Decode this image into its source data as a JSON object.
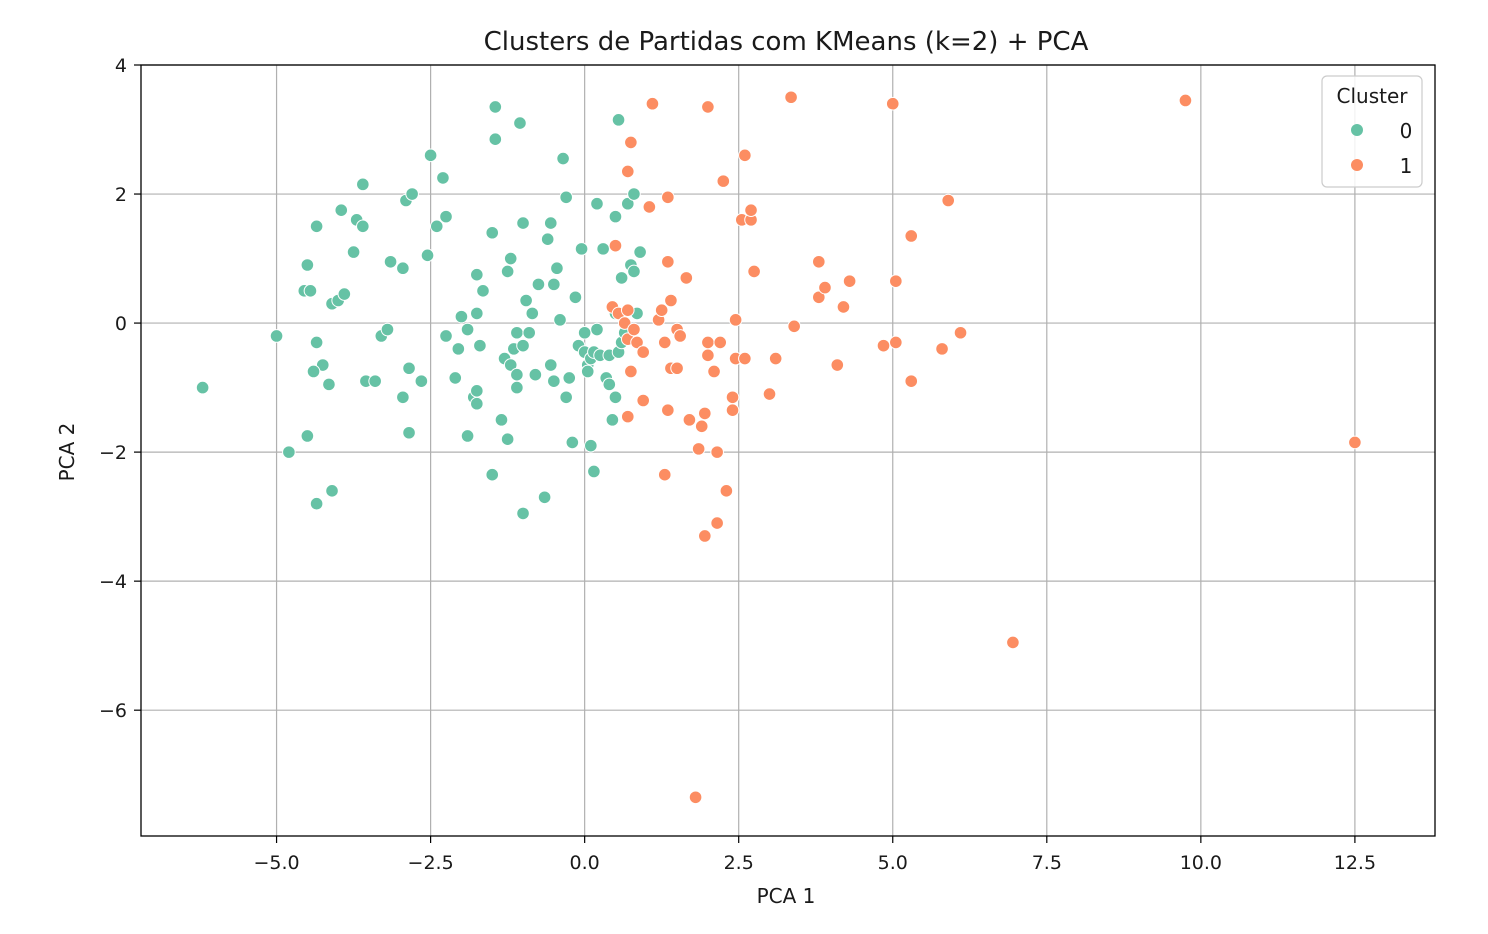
{
  "chart_data": {
    "type": "scatter",
    "title": "Clusters de Partidas com KMeans (k=2) + PCA",
    "xlabel": "PCA 1",
    "ylabel": "PCA 2",
    "xlim": [
      -7.2,
      13.8
    ],
    "ylim": [
      -7.95,
      4.0
    ],
    "x_ticks": [
      -5.0,
      -2.5,
      0.0,
      2.5,
      5.0,
      7.5,
      10.0,
      12.5
    ],
    "x_tick_labels": [
      "−5.0",
      "−2.5",
      "0.0",
      "2.5",
      "5.0",
      "7.5",
      "10.0",
      "12.5"
    ],
    "y_ticks": [
      4,
      2,
      0,
      -2,
      -4,
      -6
    ],
    "y_tick_labels": [
      "4",
      "2",
      "0",
      "−2",
      "−4",
      "−6"
    ],
    "grid": true,
    "legend": {
      "title": "Cluster",
      "placement": "top-right"
    },
    "series": [
      {
        "name": "0",
        "color": "#66c2a5",
        "points": [
          [
            -6.2,
            -1.0
          ],
          [
            -5.0,
            -0.2
          ],
          [
            -4.8,
            -2.0
          ],
          [
            -4.5,
            -1.75
          ],
          [
            -4.35,
            -2.8
          ],
          [
            -4.1,
            -2.6
          ],
          [
            -4.35,
            1.5
          ],
          [
            -4.5,
            0.9
          ],
          [
            -4.55,
            0.5
          ],
          [
            -4.45,
            0.5
          ],
          [
            -4.35,
            -0.3
          ],
          [
            -4.25,
            -0.65
          ],
          [
            -4.4,
            -0.75
          ],
          [
            -4.15,
            -0.95
          ],
          [
            -4.1,
            0.3
          ],
          [
            -4.0,
            0.35
          ],
          [
            -3.9,
            0.45
          ],
          [
            -3.95,
            1.75
          ],
          [
            -3.75,
            1.1
          ],
          [
            -3.7,
            1.6
          ],
          [
            -3.6,
            1.5
          ],
          [
            -3.6,
            2.15
          ],
          [
            -3.55,
            -0.9
          ],
          [
            -3.4,
            -0.9
          ],
          [
            -3.3,
            -0.2
          ],
          [
            -3.2,
            -0.1
          ],
          [
            -3.15,
            0.95
          ],
          [
            -2.95,
            0.85
          ],
          [
            -2.95,
            -1.15
          ],
          [
            -2.9,
            1.9
          ],
          [
            -2.85,
            -0.7
          ],
          [
            -2.8,
            2.0
          ],
          [
            -2.85,
            -1.7
          ],
          [
            -2.65,
            -0.9
          ],
          [
            -2.55,
            1.05
          ],
          [
            -2.5,
            2.6
          ],
          [
            -2.4,
            1.5
          ],
          [
            -2.3,
            2.25
          ],
          [
            -2.25,
            1.65
          ],
          [
            -2.25,
            -0.2
          ],
          [
            -2.1,
            -0.85
          ],
          [
            -2.05,
            -0.4
          ],
          [
            -2.0,
            0.1
          ],
          [
            -1.9,
            -1.75
          ],
          [
            -1.9,
            -0.1
          ],
          [
            -1.8,
            -1.15
          ],
          [
            -1.75,
            -1.05
          ],
          [
            -1.75,
            -1.25
          ],
          [
            -1.75,
            0.15
          ],
          [
            -1.75,
            0.75
          ],
          [
            -1.7,
            -0.35
          ],
          [
            -1.65,
            0.5
          ],
          [
            -1.5,
            1.4
          ],
          [
            -1.5,
            -2.35
          ],
          [
            -1.45,
            2.85
          ],
          [
            -1.45,
            3.35
          ],
          [
            -1.35,
            -1.5
          ],
          [
            -1.3,
            -0.55
          ],
          [
            -1.25,
            0.8
          ],
          [
            -1.2,
            -0.65
          ],
          [
            -1.2,
            1.0
          ],
          [
            -1.25,
            -1.8
          ],
          [
            -1.15,
            -0.4
          ],
          [
            -1.1,
            -0.15
          ],
          [
            -1.1,
            -0.8
          ],
          [
            -1.1,
            -1.0
          ],
          [
            -1.05,
            3.1
          ],
          [
            -1.0,
            1.55
          ],
          [
            -1.0,
            -0.35
          ],
          [
            -0.95,
            0.35
          ],
          [
            -0.9,
            -0.15
          ],
          [
            -0.85,
            0.15
          ],
          [
            -0.8,
            -0.8
          ],
          [
            -0.75,
            0.6
          ],
          [
            -0.65,
            -2.7
          ],
          [
            -0.6,
            1.3
          ],
          [
            -0.55,
            1.55
          ],
          [
            -0.55,
            -0.65
          ],
          [
            -0.5,
            0.6
          ],
          [
            -0.5,
            -0.9
          ],
          [
            -0.45,
            0.85
          ],
          [
            -0.4,
            0.05
          ],
          [
            -0.35,
            2.55
          ],
          [
            -0.3,
            1.95
          ],
          [
            -0.3,
            -1.15
          ],
          [
            -0.25,
            -0.85
          ],
          [
            -0.2,
            -1.85
          ],
          [
            -0.15,
            0.4
          ],
          [
            -1.0,
            -2.95
          ],
          [
            -0.1,
            -0.35
          ],
          [
            -0.05,
            1.15
          ],
          [
            0.0,
            -0.15
          ],
          [
            0.0,
            -0.45
          ],
          [
            0.05,
            -0.65
          ],
          [
            0.05,
            -0.75
          ],
          [
            0.1,
            -1.9
          ],
          [
            0.1,
            -0.55
          ],
          [
            0.15,
            -2.3
          ],
          [
            0.15,
            -0.45
          ],
          [
            0.2,
            1.85
          ],
          [
            0.2,
            -0.1
          ],
          [
            0.25,
            -0.5
          ],
          [
            0.3,
            1.15
          ],
          [
            0.35,
            -0.85
          ],
          [
            0.4,
            -0.95
          ],
          [
            0.4,
            -0.5
          ],
          [
            0.45,
            -1.5
          ],
          [
            0.5,
            0.15
          ],
          [
            0.5,
            -1.15
          ],
          [
            0.5,
            1.65
          ],
          [
            0.55,
            3.15
          ],
          [
            0.55,
            -0.45
          ],
          [
            0.6,
            0.7
          ],
          [
            0.6,
            -0.3
          ],
          [
            0.65,
            -0.15
          ],
          [
            0.7,
            1.85
          ],
          [
            0.75,
            0.9
          ],
          [
            0.8,
            0.8
          ],
          [
            0.8,
            2.0
          ],
          [
            0.85,
            0.15
          ],
          [
            0.9,
            1.1
          ]
        ]
      },
      {
        "name": "1",
        "color": "#fc8d62",
        "points": [
          [
            0.45,
            0.25
          ],
          [
            0.5,
            1.2
          ],
          [
            0.55,
            0.15
          ],
          [
            0.65,
            0.0
          ],
          [
            0.7,
            -0.25
          ],
          [
            0.7,
            0.2
          ],
          [
            0.7,
            -1.45
          ],
          [
            0.7,
            2.35
          ],
          [
            0.75,
            2.8
          ],
          [
            0.75,
            -0.75
          ],
          [
            0.8,
            -0.1
          ],
          [
            0.85,
            -0.3
          ],
          [
            0.95,
            -0.45
          ],
          [
            0.95,
            -1.2
          ],
          [
            1.05,
            1.8
          ],
          [
            1.1,
            3.4
          ],
          [
            1.2,
            0.05
          ],
          [
            1.25,
            0.2
          ],
          [
            1.3,
            -0.3
          ],
          [
            1.3,
            -2.35
          ],
          [
            1.35,
            0.95
          ],
          [
            1.35,
            1.95
          ],
          [
            1.35,
            -1.35
          ],
          [
            1.4,
            0.35
          ],
          [
            1.4,
            -0.7
          ],
          [
            1.5,
            -0.1
          ],
          [
            1.5,
            -0.7
          ],
          [
            1.55,
            -0.2
          ],
          [
            1.65,
            0.7
          ],
          [
            1.7,
            -1.5
          ],
          [
            1.8,
            -7.35
          ],
          [
            1.85,
            -1.95
          ],
          [
            1.9,
            -1.6
          ],
          [
            1.95,
            -3.3
          ],
          [
            1.95,
            -1.4
          ],
          [
            2.0,
            -0.5
          ],
          [
            2.0,
            -0.3
          ],
          [
            2.0,
            3.35
          ],
          [
            2.1,
            -0.75
          ],
          [
            2.15,
            -2.0
          ],
          [
            2.15,
            -3.1
          ],
          [
            2.2,
            -0.3
          ],
          [
            2.25,
            2.2
          ],
          [
            2.3,
            -2.6
          ],
          [
            2.4,
            -1.15
          ],
          [
            2.4,
            -1.35
          ],
          [
            2.45,
            0.05
          ],
          [
            2.45,
            -0.55
          ],
          [
            2.55,
            1.6
          ],
          [
            2.6,
            2.6
          ],
          [
            2.6,
            -0.55
          ],
          [
            2.7,
            1.6
          ],
          [
            2.7,
            1.75
          ],
          [
            2.75,
            0.8
          ],
          [
            3.0,
            -1.1
          ],
          [
            3.1,
            -0.55
          ],
          [
            3.35,
            3.5
          ],
          [
            3.4,
            -0.05
          ],
          [
            3.8,
            0.95
          ],
          [
            3.8,
            0.4
          ],
          [
            3.9,
            0.55
          ],
          [
            4.1,
            -0.65
          ],
          [
            4.2,
            0.25
          ],
          [
            4.3,
            0.65
          ],
          [
            4.85,
            -0.35
          ],
          [
            5.0,
            3.4
          ],
          [
            5.05,
            -0.3
          ],
          [
            5.05,
            0.65
          ],
          [
            5.3,
            1.35
          ],
          [
            5.3,
            -0.9
          ],
          [
            5.8,
            -0.4
          ],
          [
            5.9,
            1.9
          ],
          [
            6.1,
            -0.15
          ],
          [
            6.95,
            -4.95
          ],
          [
            9.75,
            3.45
          ],
          [
            12.5,
            -1.85
          ]
        ]
      }
    ]
  }
}
